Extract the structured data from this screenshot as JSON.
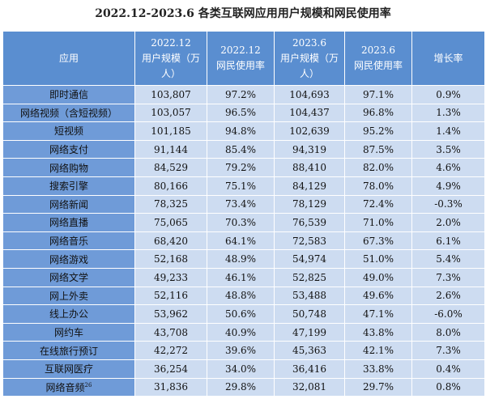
{
  "title": "2022.12-2023.6 各类互联网应用用户规模和网民使用率",
  "table": {
    "header": [
      [
        "应用"
      ],
      [
        "2022.12",
        "用户规模（万人）"
      ],
      [
        "2022.12",
        "网民使用率"
      ],
      [
        "2023.6",
        "用户规模（万人）"
      ],
      [
        "2023.6",
        "网民使用率"
      ],
      [
        "增长率"
      ]
    ],
    "rows": [
      [
        "即时通信",
        "103,807",
        "97.2%",
        "104,693",
        "97.1%",
        "0.9%"
      ],
      [
        "网络视频（含短视频）",
        "103,057",
        "96.5%",
        "104,437",
        "96.8%",
        "1.3%"
      ],
      [
        "短视频",
        "101,185",
        "94.8%",
        "102,639",
        "95.2%",
        "1.4%"
      ],
      [
        "网络支付",
        "91,144",
        "85.4%",
        "94,319",
        "87.5%",
        "3.5%"
      ],
      [
        "网络购物",
        "84,529",
        "79.2%",
        "88,410",
        "82.0%",
        "4.6%"
      ],
      [
        "搜索引擎",
        "80,166",
        "75.1%",
        "84,129",
        "78.0%",
        "4.9%"
      ],
      [
        "网络新闻",
        "78,325",
        "73.4%",
        "78,129",
        "72.4%",
        "-0.3%"
      ],
      [
        "网络直播",
        "75,065",
        "70.3%",
        "76,539",
        "71.0%",
        "2.0%"
      ],
      [
        "网络音乐",
        "68,420",
        "64.1%",
        "72,583",
        "67.3%",
        "6.1%"
      ],
      [
        "网络游戏",
        "52,168",
        "48.9%",
        "54,974",
        "51.0%",
        "5.4%"
      ],
      [
        "网络文学",
        "49,233",
        "46.1%",
        "52,825",
        "49.0%",
        "7.3%"
      ],
      [
        "网上外卖",
        "52,116",
        "48.8%",
        "53,488",
        "49.6%",
        "2.6%"
      ],
      [
        "线上办公",
        "53,962",
        "50.6%",
        "50,748",
        "47.1%",
        "-6.0%"
      ],
      [
        "网约车",
        "43,708",
        "40.9%",
        "47,199",
        "43.8%",
        "8.0%"
      ],
      [
        "在线旅行预订",
        "42,272",
        "39.6%",
        "45,363",
        "42.1%",
        "7.3%"
      ],
      [
        "互联网医疗",
        "36,254",
        "34.0%",
        "36,416",
        "33.8%",
        "0.4%"
      ],
      [
        [
          "网络音频",
          "26"
        ],
        "31,836",
        "29.8%",
        "32,081",
        "29.7%",
        "0.8%"
      ]
    ]
  }
}
